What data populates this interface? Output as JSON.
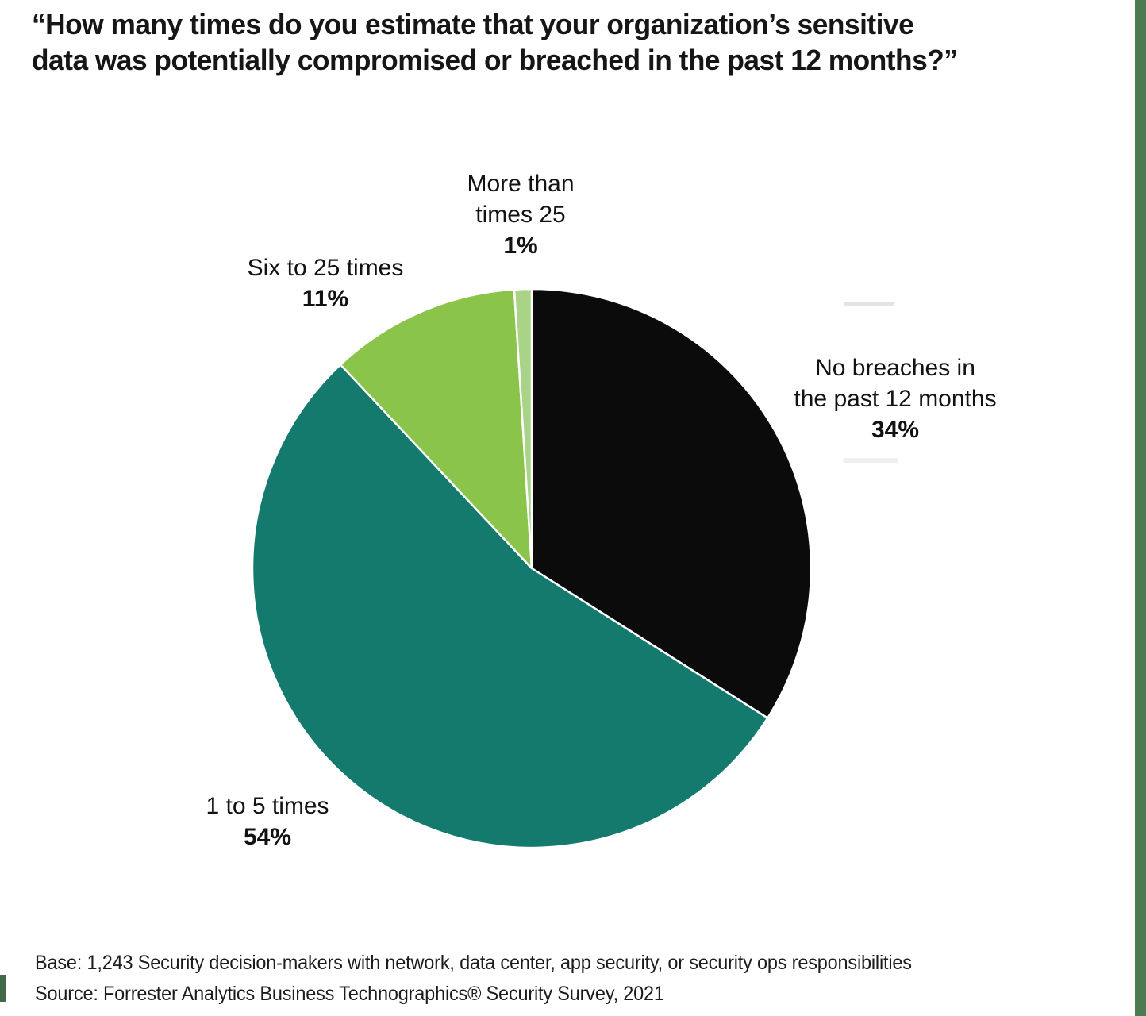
{
  "header": {
    "title_lines": [
      "“How many times do you estimate that your organization’s sensitive",
      "data was potentially compromised or breached in the past 12 months?”"
    ]
  },
  "chart_data": {
    "type": "pie",
    "title": "“How many times do you estimate that your organization’s sensitive data was potentially compromised or breached in the past 12 months?”",
    "start": "12 o'clock, clockwise",
    "slice_border_color": "#ffffff",
    "slices": [
      {
        "label": "No breaches in the past 12 months",
        "label_lines": [
          "No breaches in",
          "the past 12 months"
        ],
        "value_pct": 34,
        "pct_label": "34%",
        "color": "#0b0b0b"
      },
      {
        "label": "1 to 5 times",
        "label_lines": [
          "1 to 5 times"
        ],
        "value_pct": 54,
        "pct_label": "54%",
        "color": "#157a6e"
      },
      {
        "label": "Six to 25 times",
        "label_lines": [
          "Six to 25 times"
        ],
        "value_pct": 11,
        "pct_label": "11%",
        "color": "#8ac44a"
      },
      {
        "label": "More than times 25",
        "label_lines": [
          "More than",
          "times 25"
        ],
        "value_pct": 1,
        "pct_label": "1%",
        "color": "#a9d487"
      }
    ]
  },
  "footer": {
    "base": "Base: 1,243 Security decision-makers with network, data center, app security, or security ops responsibilities",
    "source": "Source: Forrester Analytics Business Technographics® Security Survey, 2021"
  },
  "decor": {
    "right_strip_color": "#4c7a51",
    "left_mark_color": "#44694a"
  }
}
